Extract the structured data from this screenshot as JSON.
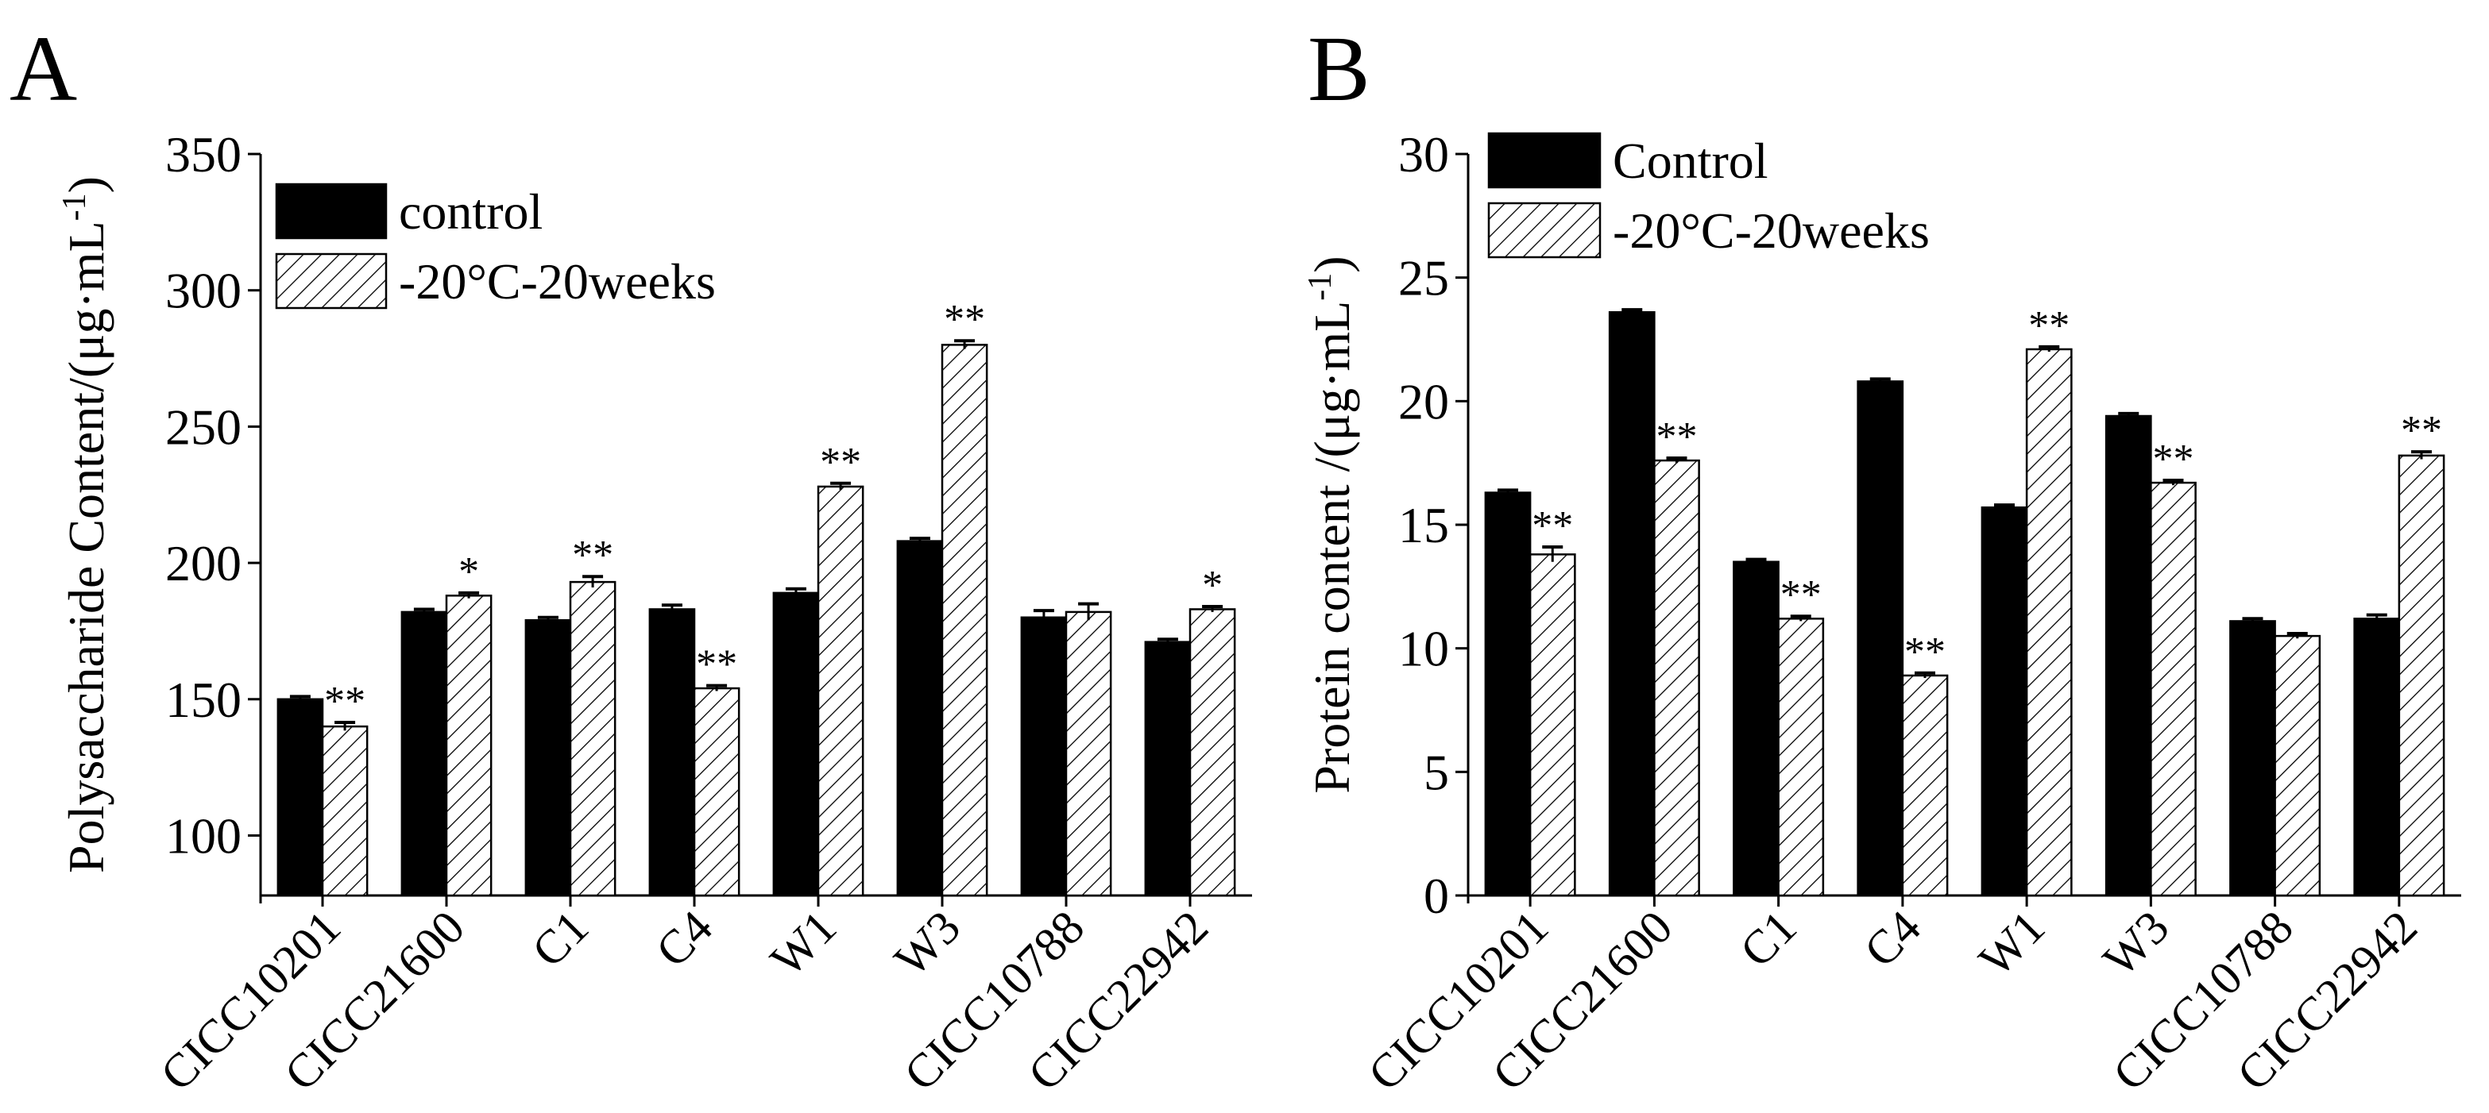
{
  "chart_data": [
    {
      "panel": "A",
      "type": "bar",
      "title": "",
      "xlabel": "",
      "ylabel": "Polysaccharide Content/(μg·mL",
      "ylabel_sup": "-1",
      "ylabel_close": ")",
      "ylim": [
        78,
        350
      ],
      "yticks": [
        100,
        150,
        200,
        250,
        300,
        350
      ],
      "categories": [
        "CICC10201",
        "CICC21600",
        "C1",
        "C4",
        "W1",
        "W3",
        "CICC10788",
        "CICC22942"
      ],
      "series": [
        {
          "name": "control",
          "fill": "solid",
          "values": [
            150,
            182,
            179,
            183,
            189,
            208,
            180,
            171
          ],
          "errors": [
            1,
            1,
            1,
            1.5,
            1.5,
            1,
            2.5,
            1
          ]
        },
        {
          "name": "-20°C-20weeks",
          "fill": "hatch",
          "values": [
            140,
            188,
            193,
            154,
            228,
            280,
            182,
            183
          ],
          "errors": [
            1.5,
            1,
            2,
            1,
            1.2,
            1.5,
            3,
            1
          ]
        }
      ],
      "significance": [
        "**",
        "*",
        "**",
        "**",
        "**",
        "**",
        "",
        "*"
      ],
      "legend": [
        "control",
        "-20°C-20weeks"
      ],
      "legend_position": "top-left"
    },
    {
      "panel": "B",
      "type": "bar",
      "title": "",
      "xlabel": "",
      "ylabel": "Protein content /(μg·mL",
      "ylabel_sup": "-1",
      "ylabel_close": ")",
      "ylim": [
        0,
        30
      ],
      "yticks": [
        0,
        5,
        10,
        15,
        20,
        25,
        30
      ],
      "categories": [
        "CICC10201",
        "CICC21600",
        "C1",
        "C4",
        "W1",
        "W3",
        "CICC10788",
        "CICC22942"
      ],
      "series": [
        {
          "name": "Control",
          "fill": "solid",
          "values": [
            16.3,
            23.6,
            13.5,
            20.8,
            15.7,
            19.4,
            11.1,
            11.2
          ],
          "errors": [
            0.1,
            0.1,
            0.1,
            0.1,
            0.1,
            0.1,
            0.1,
            0.15
          ]
        },
        {
          "name": "-20°C-20weeks",
          "fill": "hatch",
          "values": [
            13.8,
            17.6,
            11.2,
            8.9,
            22.1,
            16.7,
            10.5,
            17.8
          ],
          "errors": [
            0.3,
            0.1,
            0.1,
            0.1,
            0.1,
            0.1,
            0.1,
            0.15
          ]
        }
      ],
      "significance": [
        "**",
        "**",
        "**",
        "**",
        "**",
        "**",
        "",
        "**"
      ],
      "legend": [
        "Control",
        "-20°C-20weeks"
      ],
      "legend_position": "top-left"
    }
  ],
  "colors": {
    "bar_solid": "#000000",
    "hatch_line": "#000000",
    "background": "#ffffff"
  }
}
